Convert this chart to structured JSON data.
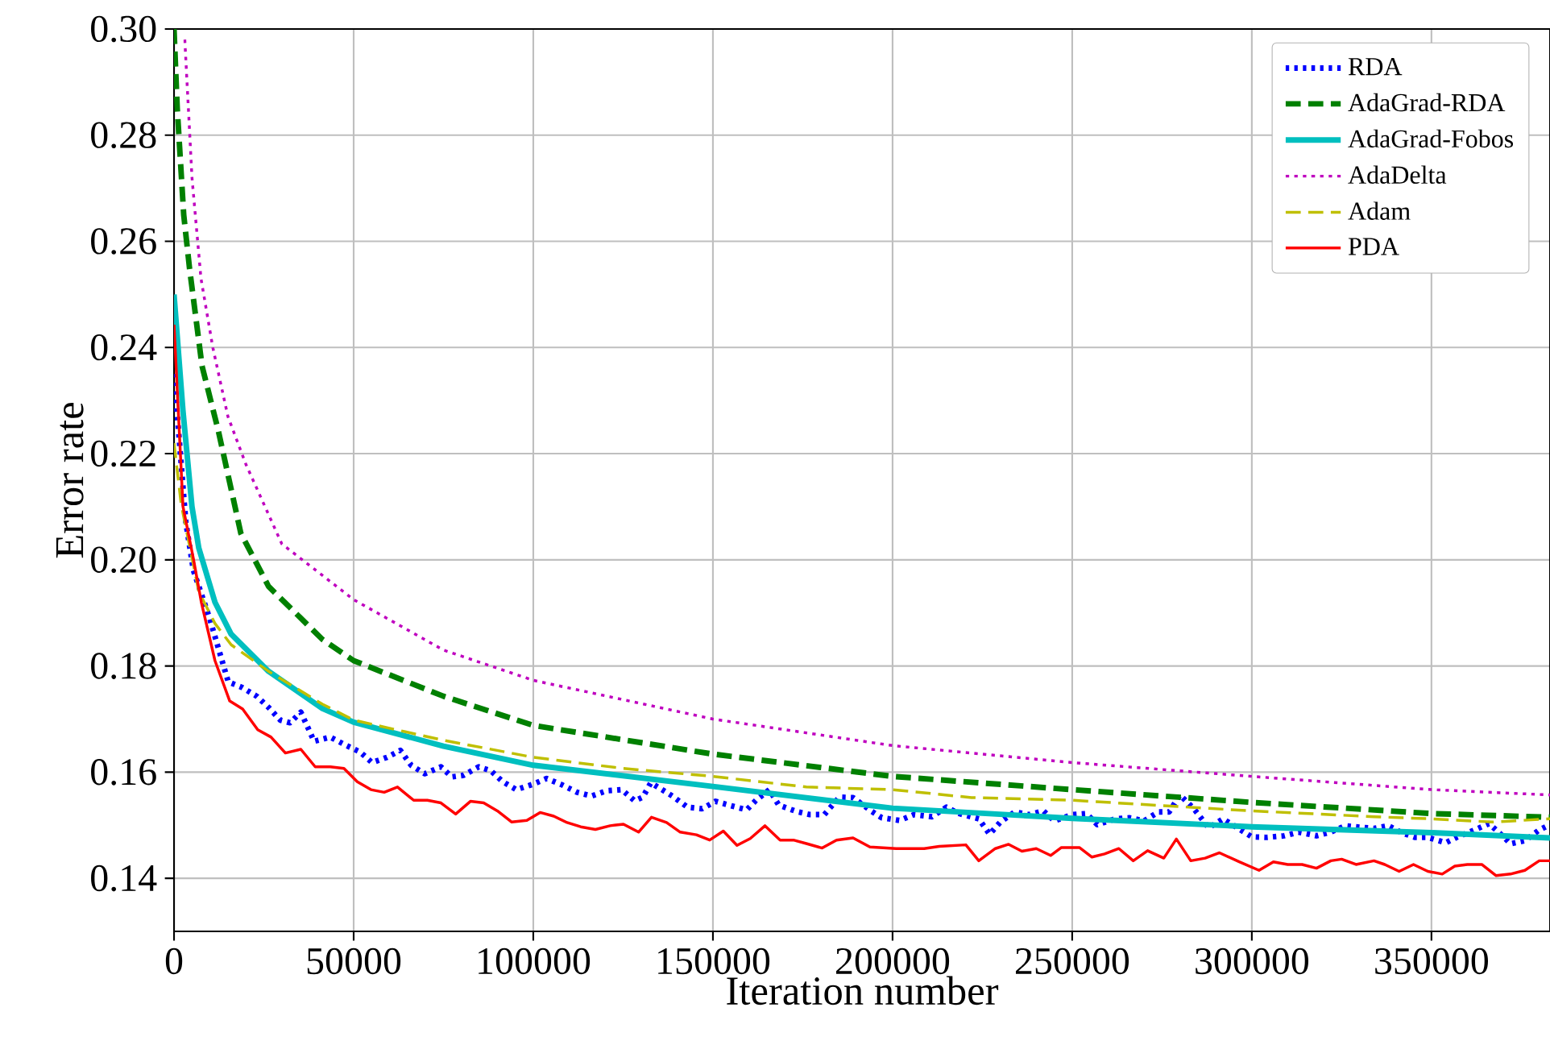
{
  "chart_data": {
    "type": "line",
    "xlabel": "Iteration number",
    "ylabel": "Error rate",
    "xlim": [
      0,
      383000
    ],
    "ylim": [
      0.13,
      0.3
    ],
    "xticks": [
      0,
      50000,
      100000,
      150000,
      200000,
      250000,
      300000,
      350000
    ],
    "yticks": [
      {
        "value": 0.14,
        "label": "0.14"
      },
      {
        "value": 0.16,
        "label": "0.16"
      },
      {
        "value": 0.18,
        "label": "0.18"
      },
      {
        "value": 0.2,
        "label": "0.20"
      },
      {
        "value": 0.22,
        "label": "0.22"
      },
      {
        "value": 0.24,
        "label": "0.24"
      },
      {
        "value": 0.26,
        "label": "0.26"
      },
      {
        "value": 0.28,
        "label": "0.28"
      },
      {
        "value": 0.3,
        "label": "0.30"
      }
    ],
    "grid": true,
    "legend": "top right",
    "series": [
      {
        "name": "RDA",
        "color": "#0000ff",
        "line_style": "dotted",
        "x": [
          0,
          3300,
          5400,
          9900,
          15100,
          18800,
          23000,
          26300,
          29600,
          32300,
          35300,
          39000,
          43500,
          48000,
          51800,
          55100,
          59300,
          63000,
          66000,
          69800,
          74300,
          77300,
          80600,
          84800,
          88100,
          91500,
          95300,
          99800,
          103700,
          108000,
          112200,
          116300,
          120400,
          124600,
          128200,
          130500,
          132700,
          138700,
          142900,
          147000,
          150700,
          156000,
          159400,
          162000,
          165700,
          168300,
          173200,
          177000,
          181000,
          185200,
          189000,
          194000,
          197000,
          202000,
          206000,
          211000,
          215000,
          218500,
          224000,
          227000,
          230000,
          234000,
          238000,
          242000,
          245000,
          250000,
          254000,
          257000,
          262000,
          266000,
          270000,
          274000,
          277000,
          280000,
          284000,
          288000,
          292000,
          296000,
          300000,
          304000,
          309000,
          313000,
          318000,
          322000,
          326000,
          329000,
          334000,
          338000,
          342000,
          345500,
          349000,
          354000,
          357000,
          362000,
          366000,
          369000,
          372000,
          376000,
          380000,
          383000
        ],
        "values": [
          0.235,
          0.207,
          0.198,
          0.189,
          0.177,
          0.176,
          0.1743,
          0.1722,
          0.1698,
          0.1693,
          0.1713,
          0.1658,
          0.1666,
          0.165,
          0.1638,
          0.1618,
          0.1628,
          0.1641,
          0.1613,
          0.1597,
          0.161,
          0.1591,
          0.1594,
          0.161,
          0.1603,
          0.1582,
          0.1567,
          0.1577,
          0.1588,
          0.1576,
          0.1562,
          0.1555,
          0.1565,
          0.1567,
          0.1546,
          0.1553,
          0.158,
          0.1555,
          0.1534,
          0.1531,
          0.1545,
          0.1535,
          0.1529,
          0.1547,
          0.1567,
          0.1538,
          0.1526,
          0.152,
          0.152,
          0.1553,
          0.1552,
          0.1527,
          0.1514,
          0.1509,
          0.152,
          0.1516,
          0.1534,
          0.1522,
          0.1512,
          0.1483,
          0.1506,
          0.1525,
          0.152,
          0.1527,
          0.1508,
          0.152,
          0.1522,
          0.1501,
          0.1512,
          0.1514,
          0.1508,
          0.1525,
          0.1525,
          0.1557,
          0.153,
          0.1495,
          0.1512,
          0.1495,
          0.1478,
          0.1477,
          0.148,
          0.1487,
          0.148,
          0.1487,
          0.1499,
          0.1497,
          0.1494,
          0.1499,
          0.1485,
          0.1477,
          0.1477,
          0.1467,
          0.1477,
          0.1491,
          0.1503,
          0.1485,
          0.1465,
          0.1471,
          0.1491,
          0.1501
        ]
      },
      {
        "name": "AdaGrad-RDA",
        "color": "#008000",
        "line_style": "dashed",
        "x": [
          0,
          900,
          2700,
          4300,
          7800,
          12300,
          18600,
          26300,
          41300,
          50000,
          75000,
          100000,
          150000,
          200000,
          250000,
          300000,
          350000,
          383000
        ],
        "values": [
          0.3,
          0.285,
          0.265,
          0.255,
          0.2365,
          0.2244,
          0.205,
          0.195,
          0.185,
          0.181,
          0.1743,
          0.1688,
          0.1634,
          0.1592,
          0.1567,
          0.1543,
          0.1522,
          0.1515
        ]
      },
      {
        "name": "AdaGrad-Fobos",
        "color": "#00bfbf",
        "line_style": "solid",
        "x": [
          0,
          2500,
          5000,
          6900,
          11400,
          15900,
          26300,
          41300,
          50000,
          75000,
          100000,
          150000,
          200000,
          250000,
          300000,
          350000,
          383000
        ],
        "values": [
          0.25,
          0.228,
          0.21,
          0.2022,
          0.192,
          0.186,
          0.179,
          0.172,
          0.1694,
          0.1649,
          0.1613,
          0.1573,
          0.1532,
          0.1513,
          0.1497,
          0.1486,
          0.1476
        ]
      },
      {
        "name": "AdaDelta",
        "color": "#bf00bf",
        "line_style": "dotted",
        "x": [
          3000,
          5000,
          7500,
          10800,
          15000,
          20000,
          30000,
          50000,
          75000,
          100000,
          150000,
          200000,
          250000,
          300000,
          350000,
          383000
        ],
        "values": [
          0.298,
          0.272,
          0.253,
          0.24,
          0.227,
          0.218,
          0.203,
          0.1925,
          0.183,
          0.1773,
          0.17,
          0.165,
          0.1618,
          0.1592,
          0.1567,
          0.1557
        ]
      },
      {
        "name": "Adam",
        "color": "#bfbf00",
        "line_style": "dashed",
        "x": [
          0,
          2000,
          6900,
          11400,
          15900,
          26300,
          41300,
          50000,
          64400,
          75000,
          100000,
          125000,
          150000,
          176000,
          200000,
          222000,
          250000,
          275000,
          300000,
          334000,
          350000,
          367000,
          383000
        ],
        "values": [
          0.222,
          0.2104,
          0.194,
          0.188,
          0.184,
          0.179,
          0.1728,
          0.1698,
          0.1676,
          0.166,
          0.1628,
          0.1607,
          0.1592,
          0.1572,
          0.1567,
          0.1552,
          0.1547,
          0.1537,
          0.1527,
          0.1516,
          0.1512,
          0.1506,
          0.1512
        ]
      },
      {
        "name": "PDA",
        "color": "#ff0000",
        "line_style": "solid",
        "x": [
          0,
          2500,
          5400,
          7600,
          11400,
          15500,
          19100,
          23300,
          27000,
          31000,
          35300,
          39300,
          43500,
          47300,
          51000,
          54800,
          58500,
          62200,
          66700,
          70500,
          74300,
          78400,
          82500,
          86200,
          90000,
          94000,
          98200,
          101900,
          105700,
          109400,
          113200,
          117300,
          121400,
          125100,
          129300,
          132900,
          137100,
          140900,
          145400,
          149100,
          152900,
          156700,
          160400,
          164500,
          168700,
          172400,
          176200,
          180400,
          184400,
          189000,
          193700,
          201000,
          208800,
          213000,
          220400,
          224000,
          228600,
          232300,
          236000,
          240000,
          244000,
          247000,
          252000,
          255500,
          259000,
          263000,
          267000,
          271000,
          275500,
          279000,
          283000,
          287000,
          291000,
          296500,
          302000,
          306000,
          310000,
          314000,
          318000,
          322000,
          325000,
          329000,
          334000,
          337000,
          341000,
          345000,
          349000,
          353000,
          356500,
          360000,
          364000,
          368000,
          372000,
          376000,
          380000,
          383000
        ],
        "values": [
          0.2443,
          0.21,
          0.2002,
          0.192,
          0.181,
          0.1734,
          0.1719,
          0.168,
          0.1666,
          0.1636,
          0.1643,
          0.161,
          0.161,
          0.1607,
          0.1582,
          0.1567,
          0.1562,
          0.1572,
          0.1547,
          0.1547,
          0.1542,
          0.1521,
          0.1545,
          0.1542,
          0.1527,
          0.1506,
          0.1509,
          0.1524,
          0.1517,
          0.1505,
          0.1497,
          0.1492,
          0.1499,
          0.1502,
          0.1487,
          0.1515,
          0.1505,
          0.1487,
          0.1482,
          0.1472,
          0.1489,
          0.1462,
          0.1475,
          0.1499,
          0.1472,
          0.1472,
          0.1465,
          0.1457,
          0.1472,
          0.1476,
          0.1459,
          0.1456,
          0.1456,
          0.146,
          0.1463,
          0.1433,
          0.1456,
          0.1464,
          0.1451,
          0.1456,
          0.1443,
          0.1458,
          0.1458,
          0.144,
          0.1446,
          0.1456,
          0.1433,
          0.1452,
          0.1438,
          0.1474,
          0.1433,
          0.1438,
          0.1448,
          0.1431,
          0.1415,
          0.1431,
          0.1426,
          0.1426,
          0.1419,
          0.1433,
          0.1436,
          0.1426,
          0.1433,
          0.1426,
          0.1413,
          0.1426,
          0.1413,
          0.1408,
          0.1423,
          0.1426,
          0.1426,
          0.1405,
          0.1408,
          0.1415,
          0.1433,
          0.1433
        ]
      }
    ]
  }
}
